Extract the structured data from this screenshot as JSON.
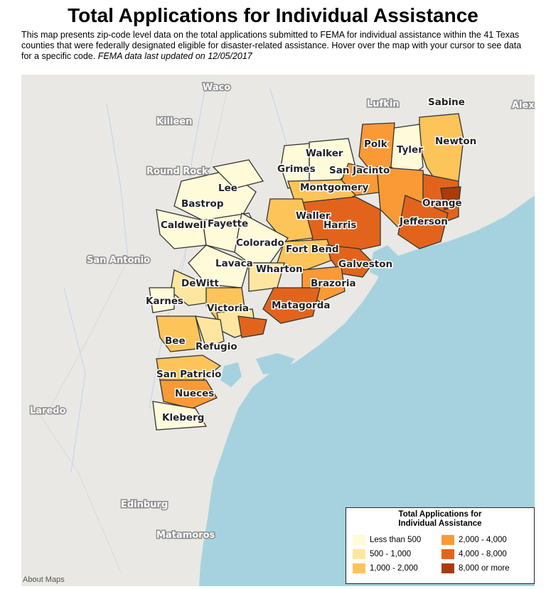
{
  "title": "Total Applications for Individual Assistance",
  "description": "This map presents zip-code level data on the total applications submitted to FEMA for individual assistance within the 41 Texas counties that were federally designated eligible for disaster-related assistance. Hover over the map with your cursor to see data for a specific code.",
  "updated_note": "FEMA data last updated on 12/05/2017",
  "attribution": "About Maps",
  "cities": [
    "Waco",
    "Killeen",
    "Round Rock",
    "San Antonio",
    "Laredo",
    "Edinburg",
    "Matamoros",
    "Lufkin",
    "Alex"
  ],
  "counties": [
    "Sabine",
    "Newton",
    "Polk",
    "Tyler",
    "Walker",
    "Grimes",
    "San Jacinto",
    "Montgomery",
    "Orange",
    "Lee",
    "Bastrop",
    "Waller",
    "Harris",
    "Jefferson",
    "Caldwell",
    "Fayette",
    "Colorado",
    "Fort Bend",
    "Lavaca",
    "Wharton",
    "Galveston",
    "DeWitt",
    "Brazoria",
    "Karnes",
    "Victoria",
    "Matagorda",
    "Bee",
    "Refugio",
    "San Patricio",
    "Nueces",
    "Kleberg"
  ],
  "legend": {
    "title_line1": "Total Applications for",
    "title_line2": "Individual Assistance",
    "items": [
      {
        "label": "Less than 500",
        "color": "#fffbd9"
      },
      {
        "label": "500 - 1,000",
        "color": "#ffe6a0"
      },
      {
        "label": "1,000 - 2,000",
        "color": "#fdc45a"
      },
      {
        "label": "2,000 - 4,000",
        "color": "#f99a36"
      },
      {
        "label": "4,000 - 8,000",
        "color": "#e2641c"
      },
      {
        "label": "8,000 or more",
        "color": "#a83c0b"
      }
    ]
  },
  "colors": {
    "water": "#a6d2e0",
    "land": "#e9e8e4",
    "border": "#333333"
  }
}
